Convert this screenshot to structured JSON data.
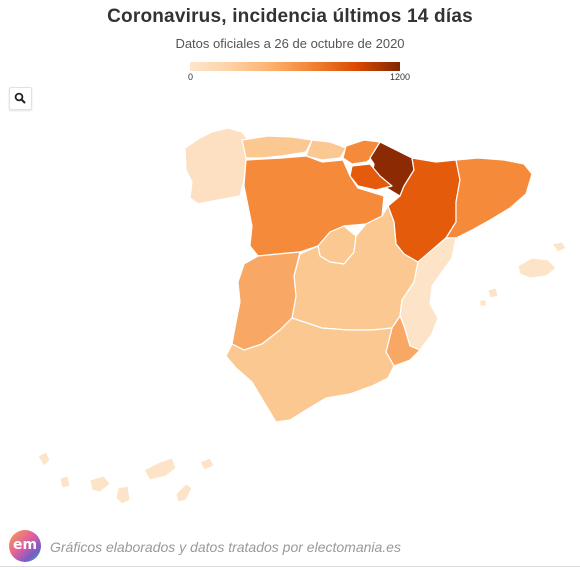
{
  "header": {
    "title": "Coronavirus, incidencia últimos 14 días",
    "subtitle": "Datos oficiales a 26 de octubre de 2020"
  },
  "legend": {
    "min": "0",
    "max": "1200",
    "colors": [
      "#fde6cd",
      "#fdd0a2",
      "#fdae6b",
      "#f07e2e",
      "#d94801",
      "#7f2704"
    ]
  },
  "toolbar": {
    "search_icon": "search-icon"
  },
  "map": {
    "colors": {
      "lightest": "#fde3c8",
      "light": "#fbc892",
      "mid": "#f9a765",
      "orange": "#f48a3a",
      "strong": "#e45b0c",
      "darkest": "#8c2a04",
      "galicia": "#fde0c2"
    }
  },
  "footer": {
    "logo": "em",
    "text": "Gráficos elaborados y datos tratados por electomania.es"
  }
}
